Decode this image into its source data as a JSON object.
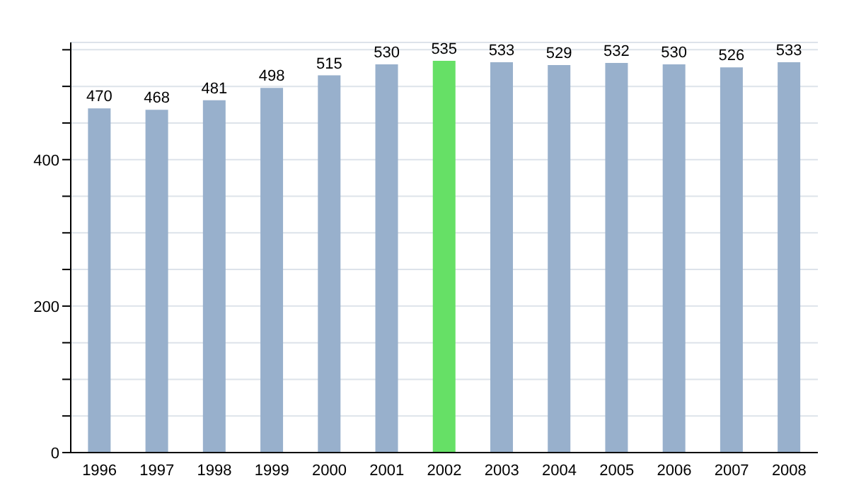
{
  "chart_data": {
    "type": "bar",
    "categories": [
      "1996",
      "1997",
      "1998",
      "1999",
      "2000",
      "2001",
      "2002",
      "2003",
      "2004",
      "2005",
      "2006",
      "2007",
      "2008"
    ],
    "values": [
      470,
      468,
      481,
      498,
      515,
      530,
      535,
      533,
      529,
      532,
      530,
      526,
      533
    ],
    "colors": [
      "#98b0cc",
      "#98b0cc",
      "#98b0cc",
      "#98b0cc",
      "#98b0cc",
      "#98b0cc",
      "#66e066",
      "#98b0cc",
      "#98b0cc",
      "#98b0cc",
      "#98b0cc",
      "#98b0cc",
      "#98b0cc"
    ],
    "ylim": [
      0,
      560
    ],
    "yticks": [
      0,
      {
        "value": 50,
        "label": null
      },
      {
        "value": 100,
        "label": null
      },
      {
        "value": 150,
        "label": null
      },
      200,
      {
        "value": 250,
        "label": null
      },
      {
        "value": 300,
        "label": null
      },
      {
        "value": 350,
        "label": null
      },
      400,
      {
        "value": 450,
        "label": null
      },
      {
        "value": 500,
        "label": null
      },
      {
        "value": 550,
        "label": null
      }
    ],
    "grid": "y",
    "data_labels": true,
    "legend": false
  }
}
